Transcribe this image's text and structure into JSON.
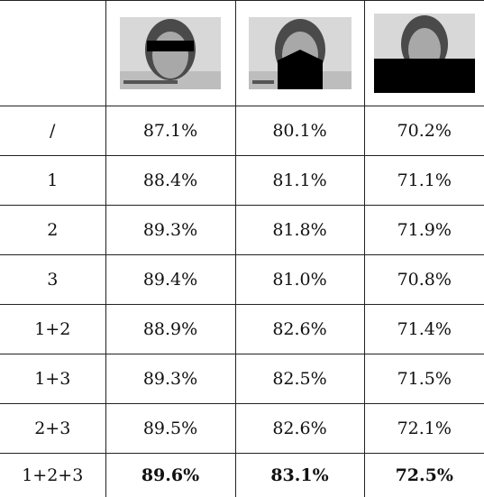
{
  "table": {
    "rows": [
      [
        "/",
        "87.1%",
        "80.1%",
        "70.2%"
      ],
      [
        "1",
        "88.4%",
        "81.1%",
        "71.1%"
      ],
      [
        "2",
        "89.3%",
        "81.8%",
        "71.9%"
      ],
      [
        "3",
        "89.4%",
        "81.0%",
        "70.8%"
      ],
      [
        "1+2",
        "88.9%",
        "82.6%",
        "71.4%"
      ],
      [
        "1+3",
        "89.3%",
        "82.5%",
        "71.5%"
      ],
      [
        "2+3",
        "89.5%",
        "82.6%",
        "72.1%"
      ],
      [
        "1+2+3",
        "89.6%",
        "83.1%",
        "72.5%"
      ]
    ]
  }
}
